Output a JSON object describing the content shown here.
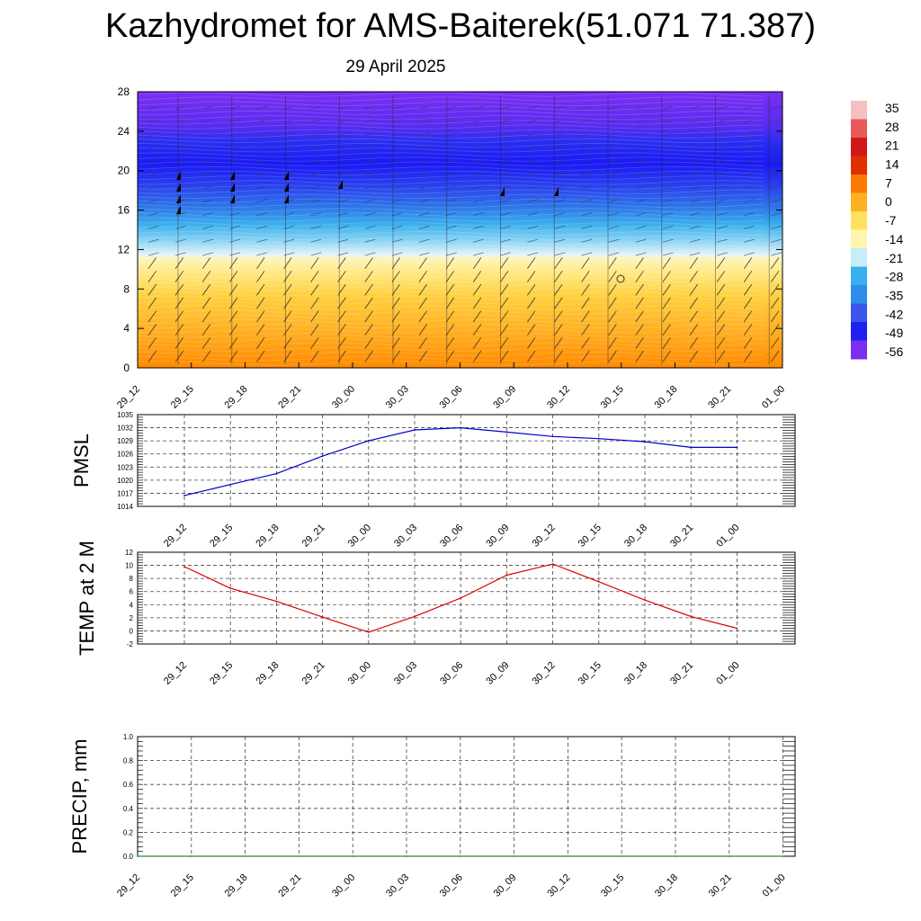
{
  "title": "Kazhydromet for AMS-Baiterek(51.071 71.387)",
  "subtitle": "29 April 2025",
  "chart_data": [
    {
      "type": "heatmap",
      "panel": "cross-section",
      "x_ticks": [
        "29_12",
        "29_15",
        "29_18",
        "29_21",
        "30_00",
        "30_03",
        "30_06",
        "30_09",
        "30_12",
        "30_15",
        "30_18",
        "30_21",
        "01_00"
      ],
      "y_ticks": [
        0,
        4,
        8,
        12,
        16,
        20,
        24,
        28
      ],
      "ylim": [
        0,
        28
      ],
      "colorbar": {
        "labels": [
          35,
          28,
          21,
          14,
          7,
          0,
          -7,
          -14,
          -21,
          -28,
          -35,
          -42,
          -49,
          -56
        ],
        "colors": [
          "#f5c0c0",
          "#e85a5a",
          "#d01818",
          "#e03000",
          "#ff7a00",
          "#ffb020",
          "#ffe060",
          "#fff6b0",
          "#c8ecf8",
          "#38b0f0",
          "#2c8ee8",
          "#3a55e8",
          "#2020f0",
          "#7a2ef0"
        ]
      },
      "field_bands": [
        {
          "from": 0,
          "to": 3,
          "value": 7
        },
        {
          "from": 3,
          "to": 7,
          "value": 0
        },
        {
          "from": 7,
          "to": 10,
          "value": -7
        },
        {
          "from": 10,
          "to": 12,
          "value": -14
        },
        {
          "from": 12,
          "to": 14,
          "value": -21
        },
        {
          "from": 14,
          "to": 16,
          "value": -35
        },
        {
          "from": 16,
          "to": 18,
          "value": -42
        },
        {
          "from": 18,
          "to": 23,
          "value": -49
        },
        {
          "from": 23,
          "to": 25,
          "value": -56
        },
        {
          "from": 25,
          "to": 28,
          "value": -56
        }
      ]
    },
    {
      "type": "line",
      "ylabel": "PMSL",
      "x": [
        "29_12",
        "29_15",
        "29_18",
        "29_21",
        "30_00",
        "30_03",
        "30_06",
        "30_09",
        "30_12",
        "30_15",
        "30_18",
        "30_21",
        "01_00"
      ],
      "y_ticks": [
        1014,
        1017,
        1020,
        1023,
        1026,
        1029,
        1032,
        1035
      ],
      "ylim": [
        1014,
        1035
      ],
      "series": [
        {
          "values": [
            1016.5,
            1019,
            1021.5,
            1025.5,
            1029,
            1031.5,
            1032,
            1031,
            1030,
            1029.5,
            1028.8,
            1027.5,
            1027.5
          ],
          "color": "#0000cc"
        }
      ]
    },
    {
      "type": "line",
      "ylabel": "TEMP at 2 M",
      "x": [
        "29_12",
        "29_15",
        "29_18",
        "29_21",
        "30_00",
        "30_03",
        "30_06",
        "30_09",
        "30_12",
        "30_15",
        "30_18",
        "30_21",
        "01_00"
      ],
      "y_ticks": [
        -2,
        0,
        2,
        4,
        6,
        8,
        10,
        12
      ],
      "ylim": [
        -2,
        12
      ],
      "series": [
        {
          "values": [
            9.8,
            6.5,
            4.5,
            2.1,
            -0.2,
            2.2,
            5.0,
            8.5,
            10.2,
            7.5,
            4.7,
            2.2,
            0.4
          ],
          "color": "#dd0000"
        }
      ]
    },
    {
      "type": "line",
      "ylabel": "PRECIP, mm",
      "x": [
        "29_12",
        "29_15",
        "29_18",
        "29_21",
        "30_00",
        "30_03",
        "30_06",
        "30_09",
        "30_12",
        "30_15",
        "30_18",
        "30_21",
        "01_00"
      ],
      "y_ticks": [
        "0.0",
        "0.2",
        "0.4",
        "0.6",
        "0.8",
        "1.0"
      ],
      "ylim": [
        0,
        1
      ],
      "series": [
        {
          "values": [
            0,
            0,
            0,
            0,
            0,
            0,
            0,
            0,
            0,
            0,
            0,
            0,
            0
          ],
          "color": "#2e8b2e"
        }
      ]
    }
  ]
}
